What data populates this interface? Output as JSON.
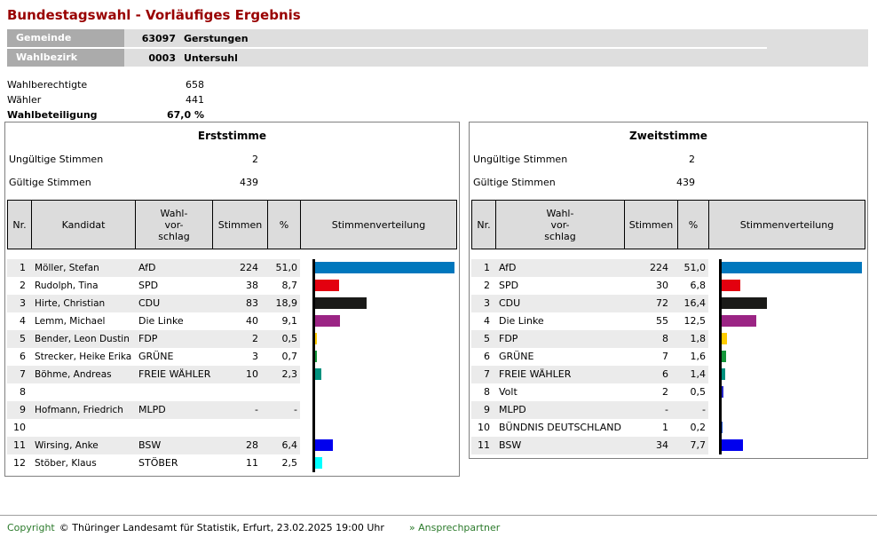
{
  "page_title": "Bundestagswahl - Vorläufiges Ergebnis",
  "info_table": {
    "rows": [
      {
        "label": "Gemeinde",
        "code": "63097",
        "name": "Gerstungen"
      },
      {
        "label": "Wahlbezirk",
        "code": "0003",
        "name": "Untersuhl"
      }
    ]
  },
  "stats": [
    {
      "label": "Wahlberechtigte",
      "value": "658"
    },
    {
      "label": "Wähler",
      "value": "441"
    },
    {
      "label": "Wahlbeteiligung",
      "value": "67,0 %"
    }
  ],
  "panels": [
    {
      "title": "Erststimme",
      "invalid_label": "Ungültige Stimmen",
      "invalid_value": "2",
      "valid_label": "Gültige Stimmen",
      "valid_value": "439",
      "columns": [
        "Nr.",
        "Kandidat",
        "Wahl-\nvor-\nschlag",
        "Stimmen",
        "%",
        "Stimmenverteilung"
      ],
      "rows": [
        {
          "nr": "1",
          "kandidat": "Möller, Stefan",
          "wahlvorschlag": "AfD",
          "stimmen": "224",
          "pct": "51,0",
          "pct_val": 51.0,
          "bar_color": "#0077bd"
        },
        {
          "nr": "2",
          "kandidat": "Rudolph, Tina",
          "wahlvorschlag": "SPD",
          "stimmen": "38",
          "pct": "8,7",
          "pct_val": 8.7,
          "bar_color": "#e3000f"
        },
        {
          "nr": "3",
          "kandidat": "Hirte, Christian",
          "wahlvorschlag": "CDU",
          "stimmen": "83",
          "pct": "18,9",
          "pct_val": 18.9,
          "bar_color": "#1a1a18"
        },
        {
          "nr": "4",
          "kandidat": "Lemm, Michael",
          "wahlvorschlag": "Die Linke",
          "stimmen": "40",
          "pct": "9,1",
          "pct_val": 9.1,
          "bar_color": "#9b2484"
        },
        {
          "nr": "5",
          "kandidat": "Bender, Leon Dustin",
          "wahlvorschlag": "FDP",
          "stimmen": "2",
          "pct": "0,5",
          "pct_val": 0.5,
          "bar_color": "#ffcc00"
        },
        {
          "nr": "6",
          "kandidat": "Strecker, Heike Erika",
          "wahlvorschlag": "GRÜNE",
          "stimmen": "3",
          "pct": "0,7",
          "pct_val": 0.7,
          "bar_color": "#149639"
        },
        {
          "nr": "7",
          "kandidat": "Böhme, Andreas",
          "wahlvorschlag": "FREIE WÄHLER",
          "stimmen": "10",
          "pct": "2,3",
          "pct_val": 2.3,
          "bar_color": "#00917e"
        },
        {
          "nr": "8",
          "kandidat": "",
          "wahlvorschlag": "",
          "stimmen": "",
          "pct": "",
          "pct_val": 0,
          "bar_color": null
        },
        {
          "nr": "9",
          "kandidat": "Hofmann, Friedrich",
          "wahlvorschlag": "MLPD",
          "stimmen": "-",
          "pct": "-",
          "pct_val": 0,
          "bar_color": null
        },
        {
          "nr": "10",
          "kandidat": "",
          "wahlvorschlag": "",
          "stimmen": "",
          "pct": "",
          "pct_val": 0,
          "bar_color": null
        },
        {
          "nr": "11",
          "kandidat": "Wirsing, Anke",
          "wahlvorschlag": "BSW",
          "stimmen": "28",
          "pct": "6,4",
          "pct_val": 6.4,
          "bar_color": "#0000ee"
        },
        {
          "nr": "12",
          "kandidat": "Stöber, Klaus",
          "wahlvorschlag": "STÖBER",
          "stimmen": "11",
          "pct": "2,5",
          "pct_val": 2.5,
          "bar_color": "#00ffff"
        }
      ]
    },
    {
      "title": "Zweitstimme",
      "invalid_label": "Ungültige Stimmen",
      "invalid_value": "2",
      "valid_label": "Gültige Stimmen",
      "valid_value": "439",
      "columns": [
        "Nr.",
        "Wahl-\nvor-\nschlag",
        "Stimmen",
        "%",
        "Stimmenverteilung"
      ],
      "rows": [
        {
          "nr": "1",
          "wahlvorschlag": "AfD",
          "stimmen": "224",
          "pct": "51,0",
          "pct_val": 51.0,
          "bar_color": "#0077bd"
        },
        {
          "nr": "2",
          "wahlvorschlag": "SPD",
          "stimmen": "30",
          "pct": "6,8",
          "pct_val": 6.8,
          "bar_color": "#e3000f"
        },
        {
          "nr": "3",
          "wahlvorschlag": "CDU",
          "stimmen": "72",
          "pct": "16,4",
          "pct_val": 16.4,
          "bar_color": "#1a1a18"
        },
        {
          "nr": "4",
          "wahlvorschlag": "Die Linke",
          "stimmen": "55",
          "pct": "12,5",
          "pct_val": 12.5,
          "bar_color": "#9b2484"
        },
        {
          "nr": "5",
          "wahlvorschlag": "FDP",
          "stimmen": "8",
          "pct": "1,8",
          "pct_val": 1.8,
          "bar_color": "#ffcc00"
        },
        {
          "nr": "6",
          "wahlvorschlag": "GRÜNE",
          "stimmen": "7",
          "pct": "1,6",
          "pct_val": 1.6,
          "bar_color": "#149639"
        },
        {
          "nr": "7",
          "wahlvorschlag": "FREIE WÄHLER",
          "stimmen": "6",
          "pct": "1,4",
          "pct_val": 1.4,
          "bar_color": "#00917e"
        },
        {
          "nr": "8",
          "wahlvorschlag": "Volt",
          "stimmen": "2",
          "pct": "0,5",
          "pct_val": 0.5,
          "bar_color": "#2828c8"
        },
        {
          "nr": "9",
          "wahlvorschlag": "MLPD",
          "stimmen": "-",
          "pct": "-",
          "pct_val": 0,
          "bar_color": null
        },
        {
          "nr": "10",
          "wahlvorschlag": "BÜNDNIS DEUTSCHLAND",
          "stimmen": "1",
          "pct": "0,2",
          "pct_val": 0.2,
          "bar_color": "#2255cc"
        },
        {
          "nr": "11",
          "wahlvorschlag": "BSW",
          "stimmen": "34",
          "pct": "7,7",
          "pct_val": 7.7,
          "bar_color": "#0000ee"
        }
      ]
    }
  ],
  "footer": {
    "copyright_label": "Copyright",
    "copyright_text": "© Thüringer Landesamt für Statistik, Erfurt, 23.02.2025 19:00 Uhr",
    "link_text": "» Ansprechpartner"
  }
}
